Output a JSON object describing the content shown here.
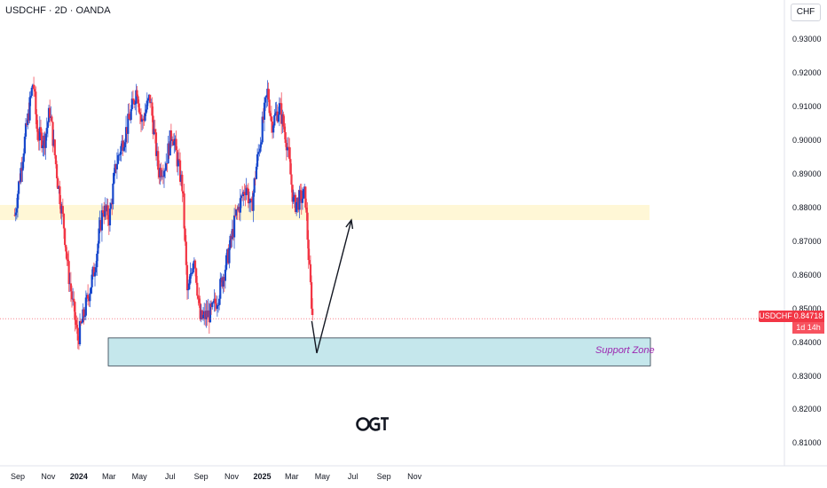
{
  "header": {
    "symbol_line": "USDCHF · 2D · OANDA",
    "currency": "CHF"
  },
  "price_badge": {
    "symbol": "USDCHF",
    "price": "0.84718",
    "countdown": "1d 14h"
  },
  "annotations": {
    "support_label": "Support Zone",
    "logo_text": "OGT"
  },
  "colors": {
    "up": "#1848cc",
    "down": "#f23645",
    "support_fill": "#b2dfe6",
    "resistance_fill": "#fff7d6",
    "label": "#9c27b0"
  },
  "chart_data": {
    "type": "candlestick",
    "title": "USDCHF · 2D · OANDA",
    "ylim": [
      0.8035,
      0.9365
    ],
    "yticks": [
      "0.93000",
      "0.92000",
      "0.91000",
      "0.90000",
      "0.89000",
      "0.88000",
      "0.87000",
      "0.86000",
      "0.85000",
      "0.84000",
      "0.83000",
      "0.82000",
      "0.81000"
    ],
    "xticks": [
      {
        "label": "Sep",
        "bold": false
      },
      {
        "label": "Nov",
        "bold": false
      },
      {
        "label": "2024",
        "bold": true
      },
      {
        "label": "Mar",
        "bold": false
      },
      {
        "label": "May",
        "bold": false
      },
      {
        "label": "Jul",
        "bold": false
      },
      {
        "label": "Sep",
        "bold": false
      },
      {
        "label": "Nov",
        "bold": false
      },
      {
        "label": "2025",
        "bold": true
      },
      {
        "label": "Mar",
        "bold": false
      },
      {
        "label": "May",
        "bold": false
      },
      {
        "label": "Jul",
        "bold": false
      },
      {
        "label": "Sep",
        "bold": false
      },
      {
        "label": "Nov",
        "bold": false
      }
    ],
    "current_price": 0.84718,
    "zones": [
      {
        "name": "resistance",
        "from": 0.8765,
        "to": 0.881
      },
      {
        "name": "Support Zone",
        "from": 0.8332,
        "to": 0.8415
      }
    ],
    "projection": [
      {
        "x": "2025-04-10",
        "y": 0.8465
      },
      {
        "x": "2025-04-20",
        "y": 0.837
      },
      {
        "x": "2025-06-28",
        "y": 0.8765
      }
    ],
    "price_path": [
      [
        "2023-08-26",
        0.878
      ],
      [
        "2023-09-10",
        0.895
      ],
      [
        "2023-10-02",
        0.918
      ],
      [
        "2023-10-10",
        0.902
      ],
      [
        "2023-10-24",
        0.9
      ],
      [
        "2023-11-04",
        0.909
      ],
      [
        "2023-11-20",
        0.888
      ],
      [
        "2023-12-02",
        0.875
      ],
      [
        "2023-12-10",
        0.862
      ],
      [
        "2023-12-30",
        0.841
      ],
      [
        "2024-01-12",
        0.849
      ],
      [
        "2024-02-01",
        0.862
      ],
      [
        "2024-02-18",
        0.88
      ],
      [
        "2024-03-02",
        0.877
      ],
      [
        "2024-03-15",
        0.893
      ],
      [
        "2024-04-10",
        0.906
      ],
      [
        "2024-04-26",
        0.916
      ],
      [
        "2024-05-05",
        0.905
      ],
      [
        "2024-05-22",
        0.913
      ],
      [
        "2024-06-08",
        0.891
      ],
      [
        "2024-06-22",
        0.893
      ],
      [
        "2024-07-05",
        0.903
      ],
      [
        "2024-07-26",
        0.886
      ],
      [
        "2024-08-05",
        0.853
      ],
      [
        "2024-08-18",
        0.867
      ],
      [
        "2024-08-30",
        0.847
      ],
      [
        "2024-09-22",
        0.849
      ],
      [
        "2024-10-05",
        0.854
      ],
      [
        "2024-10-25",
        0.866
      ],
      [
        "2024-11-10",
        0.878
      ],
      [
        "2024-11-30",
        0.887
      ],
      [
        "2024-12-10",
        0.879
      ],
      [
        "2024-12-20",
        0.892
      ],
      [
        "2025-01-12",
        0.915
      ],
      [
        "2025-01-20",
        0.905
      ],
      [
        "2025-02-05",
        0.91
      ],
      [
        "2025-02-20",
        0.899
      ],
      [
        "2025-03-05",
        0.881
      ],
      [
        "2025-03-20",
        0.883
      ],
      [
        "2025-03-28",
        0.884
      ],
      [
        "2025-04-05",
        0.862
      ],
      [
        "2025-04-12",
        0.847
      ]
    ]
  }
}
